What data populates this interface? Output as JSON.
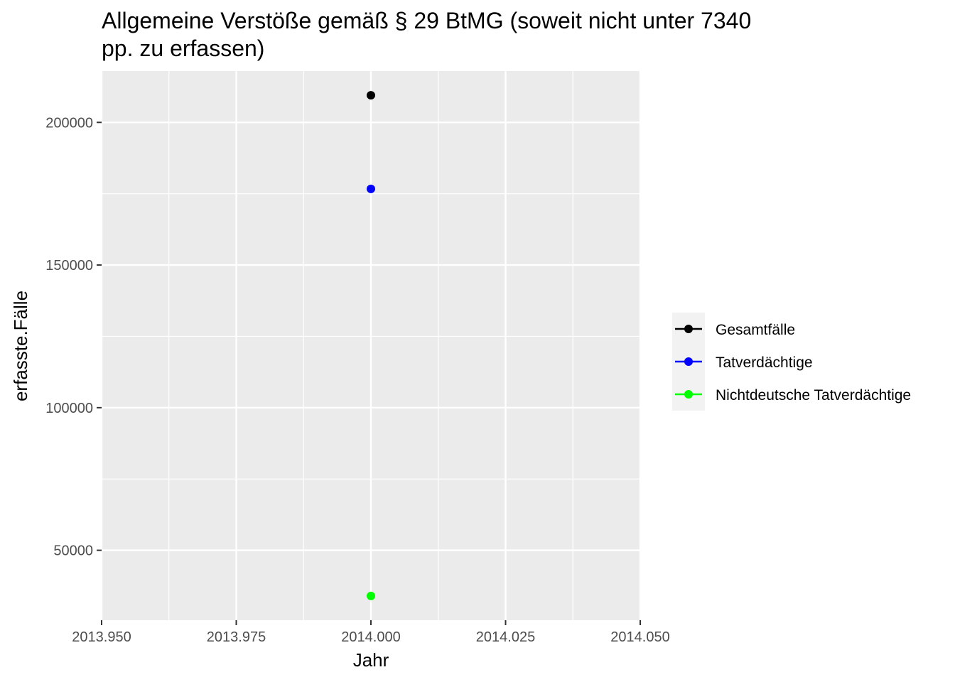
{
  "chart_data": {
    "type": "scatter",
    "title": "Allgemeine Verstöße gemäß § 29 BtMG (soweit nicht unter 7340 pp. zu erfassen)",
    "title_lines": [
      "Allgemeine Verstöße gemäß § 29 BtMG (soweit nicht unter 7340",
      "pp. zu erfassen)"
    ],
    "xlabel": "Jahr",
    "ylabel": "erfasste.Fälle",
    "xlim": [
      2013.95,
      2014.05
    ],
    "ylim": [
      25500,
      218000
    ],
    "x_ticks": [
      2013.95,
      2013.975,
      2014.0,
      2014.025,
      2014.05
    ],
    "x_tick_labels": [
      "2013.950",
      "2013.975",
      "2014.000",
      "2014.025",
      "2014.050"
    ],
    "y_ticks": [
      50000,
      100000,
      150000,
      200000
    ],
    "y_tick_labels": [
      "50000",
      "100000",
      "150000",
      "200000"
    ],
    "grid": true,
    "legend_position": "right",
    "series": [
      {
        "name": "Gesamtfälle",
        "color": "#000000",
        "points": [
          {
            "x": 2014.0,
            "y": 209500
          }
        ]
      },
      {
        "name": "Tatverdächtige",
        "color": "#0000ff",
        "points": [
          {
            "x": 2014.0,
            "y": 176700
          }
        ]
      },
      {
        "name": "Nichtdeutsche Tatverdächtige",
        "color": "#00ff00",
        "points": [
          {
            "x": 2014.0,
            "y": 34000
          }
        ]
      }
    ]
  }
}
